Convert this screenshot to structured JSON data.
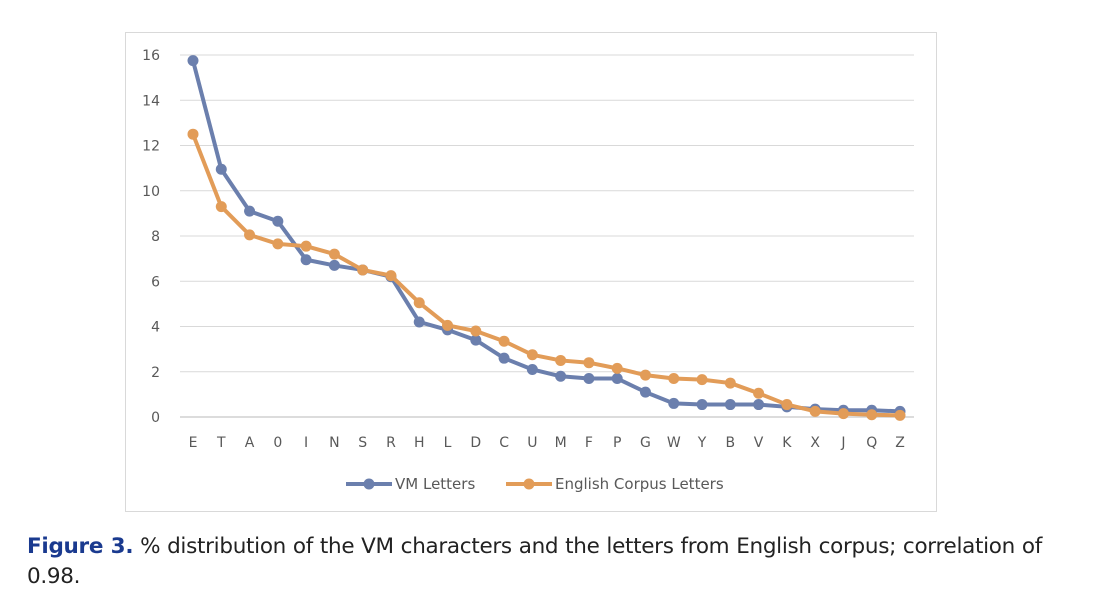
{
  "chart_data": {
    "type": "line",
    "title": "",
    "xlabel": "",
    "ylabel": "",
    "ylim": [
      0,
      16
    ],
    "yticks": [
      "0",
      "2",
      "4",
      "6",
      "8",
      "10",
      "12",
      "14",
      "16"
    ],
    "grid": true,
    "legend_position": "bottom",
    "categories": [
      "E",
      "T",
      "A",
      "0",
      "I",
      "N",
      "S",
      "R",
      "H",
      "L",
      "D",
      "C",
      "U",
      "M",
      "F",
      "P",
      "G",
      "W",
      "Y",
      "B",
      "V",
      "K",
      "X",
      "J",
      "Q",
      "Z"
    ],
    "series": [
      {
        "name": "VM Letters",
        "color": "#6b7fad",
        "values": [
          15.75,
          10.95,
          9.1,
          8.65,
          6.95,
          6.7,
          6.5,
          6.2,
          4.2,
          3.85,
          3.4,
          2.6,
          2.1,
          1.8,
          1.7,
          1.7,
          1.1,
          0.6,
          0.55,
          0.55,
          0.55,
          0.45,
          0.35,
          0.3,
          0.3,
          0.25
        ]
      },
      {
        "name": "English Corpus Letters",
        "color": "#e29c58",
        "values": [
          12.5,
          9.3,
          8.05,
          7.65,
          7.55,
          7.2,
          6.5,
          6.25,
          5.05,
          4.05,
          3.8,
          3.35,
          2.75,
          2.5,
          2.4,
          2.15,
          1.85,
          1.7,
          1.65,
          1.5,
          1.05,
          0.55,
          0.25,
          0.15,
          0.1,
          0.07
        ]
      }
    ]
  },
  "caption": {
    "label": "Figure 3.",
    "text": " % distribution of the VM characters and the letters from English corpus; correlation of 0.98."
  }
}
